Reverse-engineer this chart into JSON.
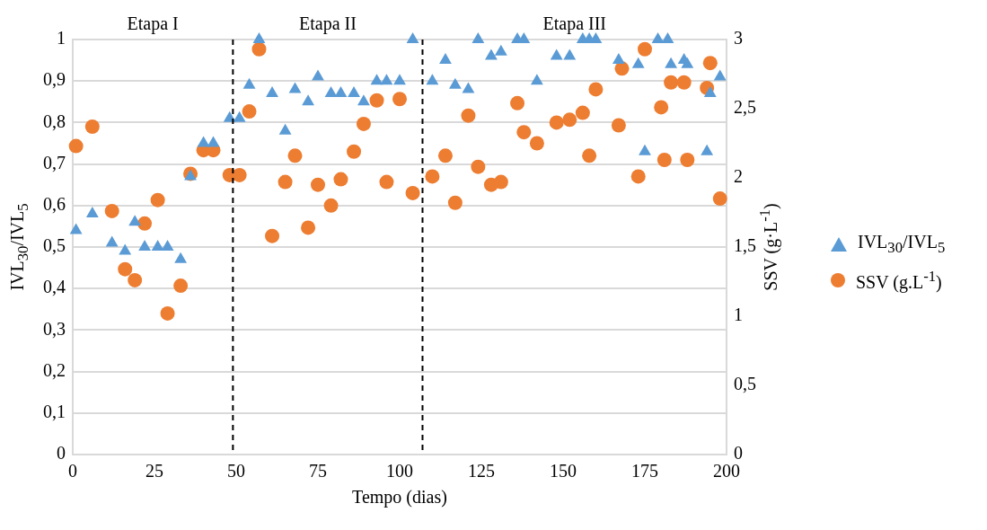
{
  "chart_data": {
    "type": "scatter",
    "xlabel": "Tempo (dias)",
    "ylabel": "IVL$_{30}$/IVL$_{5}$",
    "y2label": "SSV (g·L$^{-1}$)",
    "xlim": [
      0,
      200
    ],
    "xticks": [
      0,
      25,
      50,
      75,
      100,
      125,
      150,
      175,
      200
    ],
    "ylim": [
      0,
      1
    ],
    "yticks": [
      0,
      {
        "value": 0.1,
        "label": "0,1"
      },
      {
        "value": 0.2,
        "label": "0,2"
      },
      {
        "value": 0.3,
        "label": "0,3"
      },
      {
        "value": 0.4,
        "label": "0,4"
      },
      {
        "value": 0.5,
        "label": "0,5"
      },
      {
        "value": 0.6,
        "label": "0,6"
      },
      {
        "value": 0.7,
        "label": "0,7"
      },
      {
        "value": 0.8,
        "label": "0,8"
      },
      {
        "value": 0.9,
        "label": "0,9"
      },
      1
    ],
    "y2lim": [
      0,
      3
    ],
    "y2ticks": [
      0,
      {
        "value": 0.5,
        "label": "0,5"
      },
      1,
      {
        "value": 1.5,
        "label": "1,5"
      },
      2,
      {
        "value": 2.5,
        "label": "2,5"
      },
      3
    ],
    "grid": "y",
    "legend": "right",
    "ref_lines": [
      {
        "axis": "x",
        "value": 49,
        "color": "#000000",
        "line_style": "dashed"
      },
      {
        "axis": "x",
        "value": 107,
        "color": "#000000",
        "line_style": "dashed"
      }
    ],
    "annotations": [
      "Etapa I",
      "Etapa II",
      "Etapa III"
    ],
    "series": [
      {
        "name": "IVL$_{30}$/IVL$_{5}$",
        "color": "#5b9bd5",
        "marker": "triangle",
        "x": [
          1,
          6,
          12,
          16,
          19,
          22,
          26,
          29,
          33,
          36,
          40,
          43,
          48,
          51,
          54,
          57,
          61,
          65,
          68,
          72,
          75,
          79,
          82,
          86,
          89,
          93,
          96,
          100,
          104,
          110,
          114,
          117,
          121,
          124,
          128,
          131,
          136,
          138,
          142,
          148,
          152,
          156,
          158,
          160,
          167,
          173,
          175,
          179,
          182,
          183,
          187,
          188,
          194,
          195,
          198
        ],
        "values": [
          0.54,
          0.58,
          0.51,
          0.49,
          0.56,
          0.5,
          0.5,
          0.5,
          0.47,
          0.67,
          0.75,
          0.75,
          0.81,
          0.81,
          0.89,
          1.0,
          0.87,
          0.78,
          0.88,
          0.85,
          0.91,
          0.87,
          0.87,
          0.87,
          0.85,
          0.9,
          0.9,
          0.9,
          1.0,
          0.9,
          0.95,
          0.89,
          0.88,
          1.0,
          0.96,
          0.97,
          1.0,
          1.0,
          0.9,
          0.96,
          0.96,
          1.0,
          1.0,
          1.0,
          0.95,
          0.94,
          0.73,
          1.0,
          1.0,
          0.94,
          0.95,
          0.94,
          0.73,
          0.87,
          0.91
        ]
      },
      {
        "name": "SSV (g.L$^{-1}$)",
        "color": "#ed7d31",
        "marker": "circle",
        "axis": "y2",
        "x": [
          1,
          6,
          12,
          16,
          19,
          22,
          26,
          29,
          33,
          36,
          40,
          43,
          48,
          51,
          54,
          57,
          61,
          65,
          68,
          72,
          75,
          79,
          82,
          86,
          89,
          93,
          96,
          100,
          104,
          110,
          114,
          117,
          121,
          124,
          128,
          131,
          136,
          138,
          142,
          148,
          152,
          156,
          158,
          160,
          167,
          168,
          173,
          175,
          180,
          181,
          183,
          187,
          188,
          194,
          195,
          198
        ],
        "values": [
          2.23,
          2.37,
          1.76,
          1.34,
          1.26,
          1.67,
          1.84,
          1.02,
          1.22,
          2.03,
          2.2,
          2.2,
          2.02,
          2.02,
          2.48,
          2.93,
          1.58,
          1.97,
          2.16,
          1.64,
          1.95,
          1.8,
          1.99,
          2.19,
          2.39,
          2.56,
          1.97,
          2.57,
          1.89,
          2.01,
          2.16,
          1.82,
          2.45,
          2.08,
          1.95,
          1.97,
          2.54,
          2.33,
          2.25,
          2.4,
          2.42,
          2.47,
          2.16,
          2.64,
          2.38,
          2.79,
          2.01,
          2.93,
          2.51,
          2.13,
          2.69,
          2.69,
          2.13,
          2.65,
          2.83,
          1.85
        ]
      }
    ]
  }
}
